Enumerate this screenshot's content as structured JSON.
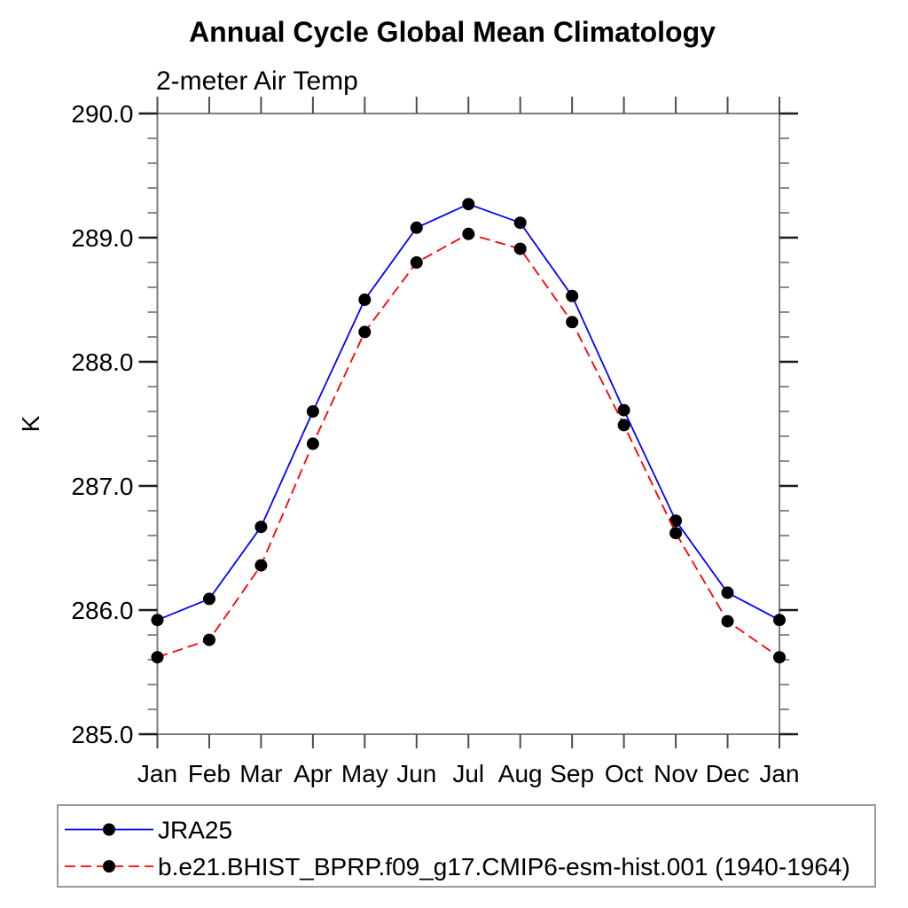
{
  "chart_data": {
    "type": "line",
    "title": "Annual Cycle Global Mean Climatology",
    "subtitle": "2-meter Air Temp",
    "ylabel": "K",
    "xlabel": "",
    "categories": [
      "Jan",
      "Feb",
      "Mar",
      "Apr",
      "May",
      "Jun",
      "Jul",
      "Aug",
      "Sep",
      "Oct",
      "Nov",
      "Dec",
      "Jan"
    ],
    "ylim": [
      285.0,
      290.0
    ],
    "y_major_ticks": [
      285.0,
      286.0,
      287.0,
      288.0,
      289.0,
      290.0
    ],
    "y_tick_labels": [
      "285.0",
      "286.0",
      "287.0",
      "288.0",
      "289.0",
      "290.0"
    ],
    "y_minor_step": 0.2,
    "grid": false,
    "legend_position": "bottom-left",
    "series": [
      {
        "name": "JRA25",
        "color": "#0000ff",
        "line_style": "solid",
        "marker": "circle",
        "marker_color": "#000000",
        "values": [
          285.92,
          286.09,
          286.67,
          287.6,
          288.5,
          289.08,
          289.27,
          289.12,
          288.53,
          287.61,
          286.72,
          286.14,
          285.92
        ]
      },
      {
        "name": "b.e21.BHIST_BPRP.f09_g17.CMIP6-esm-hist.001 (1940-1964)",
        "color": "#ff0000",
        "line_style": "dashed",
        "marker": "circle",
        "marker_color": "#000000",
        "values": [
          285.62,
          285.76,
          286.36,
          287.34,
          288.24,
          288.8,
          289.03,
          288.91,
          288.32,
          287.49,
          286.62,
          285.91,
          285.62
        ]
      }
    ],
    "colors": {
      "frame": "#7d7d7d",
      "minor_tick": "#7d7d7d",
      "major_tick": "#1a1a1a",
      "x_tick": "#4d4d4d",
      "legend_border": "#9a9a9a",
      "text": "#000000",
      "background": "#ffffff"
    }
  }
}
